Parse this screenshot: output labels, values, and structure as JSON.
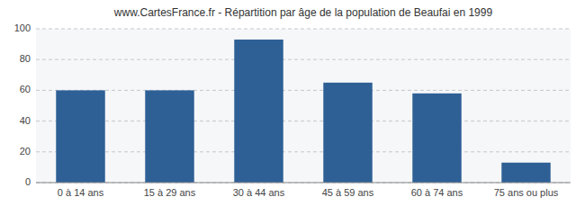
{
  "chart_data": {
    "type": "bar",
    "title": "www.CartesFrance.fr - Répartition par âge de la population de Beaufai en 1999",
    "categories": [
      "0 à 14 ans",
      "15 à 29 ans",
      "30 à 44 ans",
      "45 à 59 ans",
      "60 à 74 ans",
      "75 ans ou plus"
    ],
    "values": [
      60,
      60,
      93,
      65,
      58,
      13
    ],
    "color": "#2e6095",
    "ylim": [
      0,
      100
    ],
    "yticks": [
      0,
      20,
      40,
      60,
      80,
      100
    ],
    "grid": true
  }
}
